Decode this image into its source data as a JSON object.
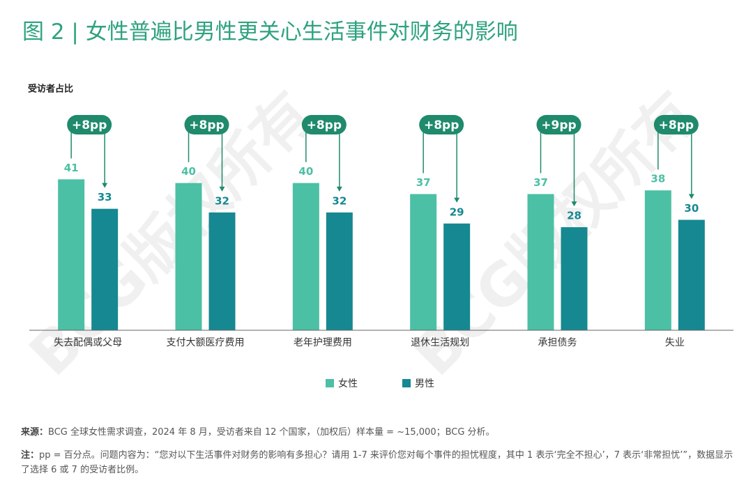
{
  "chart_data": {
    "type": "bar",
    "title": "图 2 | 女性普遍比男性更关心生活事件对财务的影响",
    "y_label": "受访者占比",
    "categories": [
      "失去配偶或父母",
      "支付大额医疗费用",
      "老年护理费用",
      "退休生活规划",
      "承担债务",
      "失业"
    ],
    "series": [
      {
        "name": "女性",
        "color": "#4cc0a4",
        "values": [
          41,
          40,
          40,
          37,
          37,
          38
        ]
      },
      {
        "name": "男性",
        "color": "#168891",
        "values": [
          33,
          32,
          32,
          29,
          28,
          30
        ]
      }
    ],
    "annotations": [
      "+8pp",
      "+8pp",
      "+8pp",
      "+8pp",
      "+9pp",
      "+8pp"
    ],
    "annotation_color": "#1f8a6c",
    "ylim": [
      0,
      60
    ],
    "watermark": "BCG版权所有",
    "source": {
      "label": "来源：",
      "text": "BCG 全球女性需求调查，2024 年 8 月，受访者来自 12 个国家，（加权后）样本量 = ~15,000；BCG 分析。"
    },
    "note": {
      "label": "注：",
      "text": "pp = 百分点。问题内容为：“您对以下生活事件对财务的影响有多担心？请用 1-7 来评价您对每个事件的担忧程度，其中 1 表示‘完全不担心’，7 表示‘非常担忧’”，数据显示了选择 6 或 7 的受访者比例。"
    }
  }
}
